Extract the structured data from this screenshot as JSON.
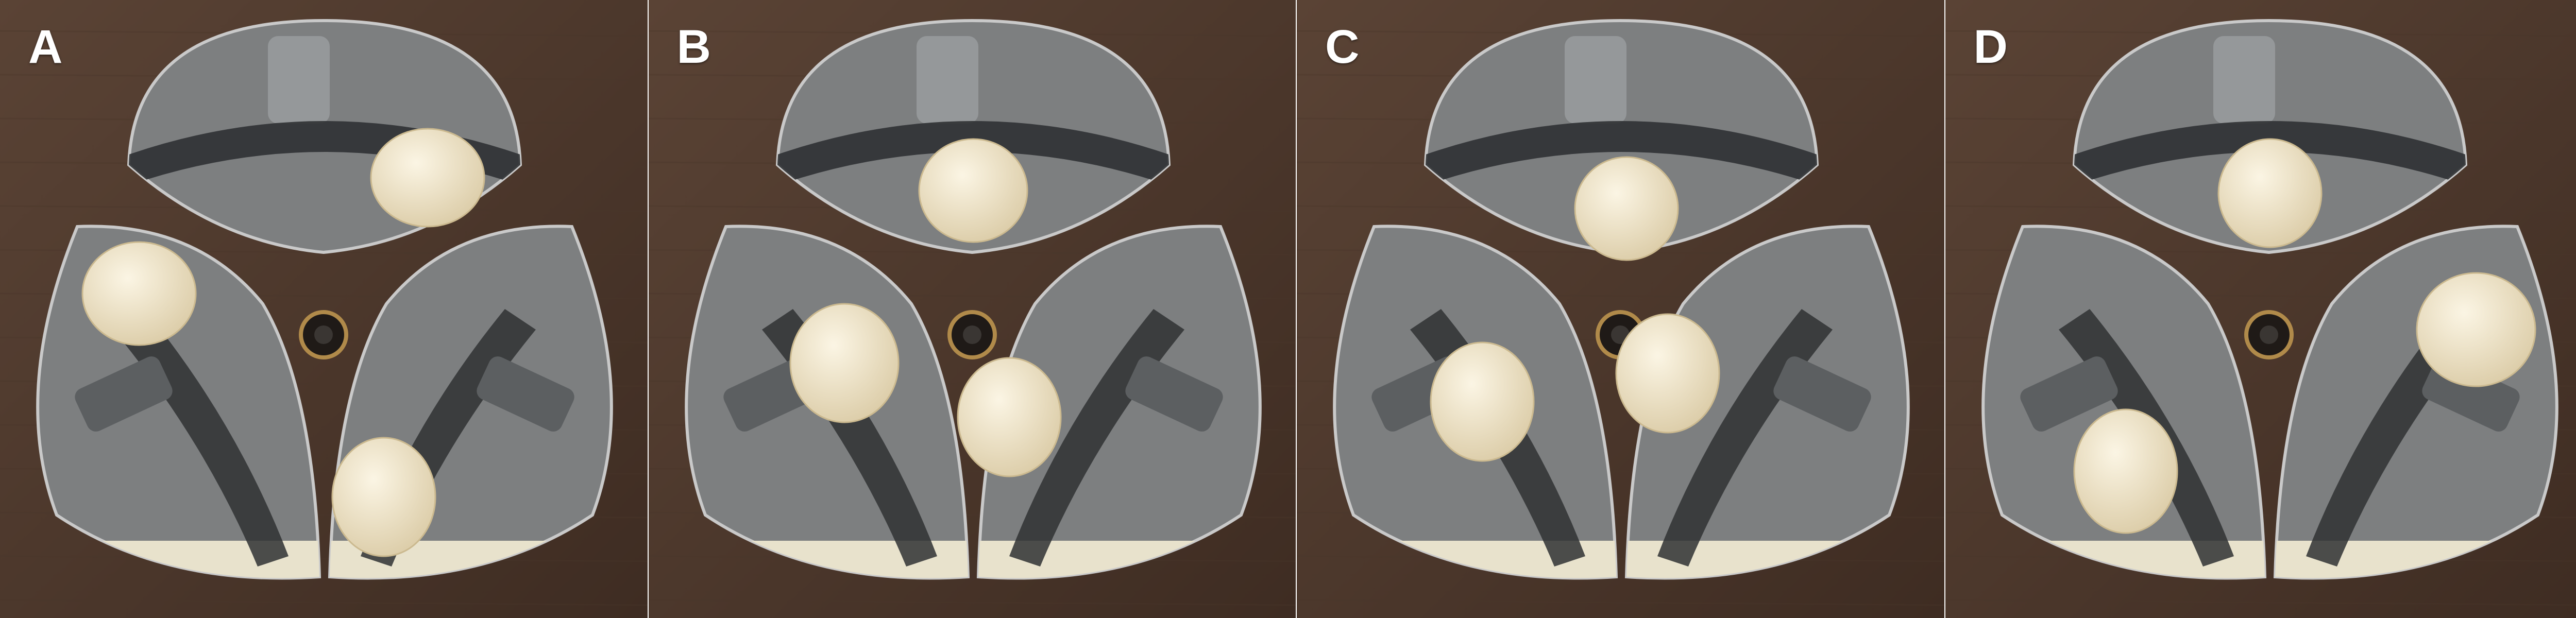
{
  "panels": [
    {
      "label": "A"
    },
    {
      "label": "B"
    },
    {
      "label": "C"
    },
    {
      "label": "D"
    }
  ],
  "colors": {
    "wood": "#5a4335",
    "wood_dark": "#3e2c22",
    "window_bg": "#7d7f80",
    "mechanism": "#2f3133",
    "finger": "#efe4c8",
    "floor": "#e8e2cc",
    "label": "#ffffff"
  }
}
